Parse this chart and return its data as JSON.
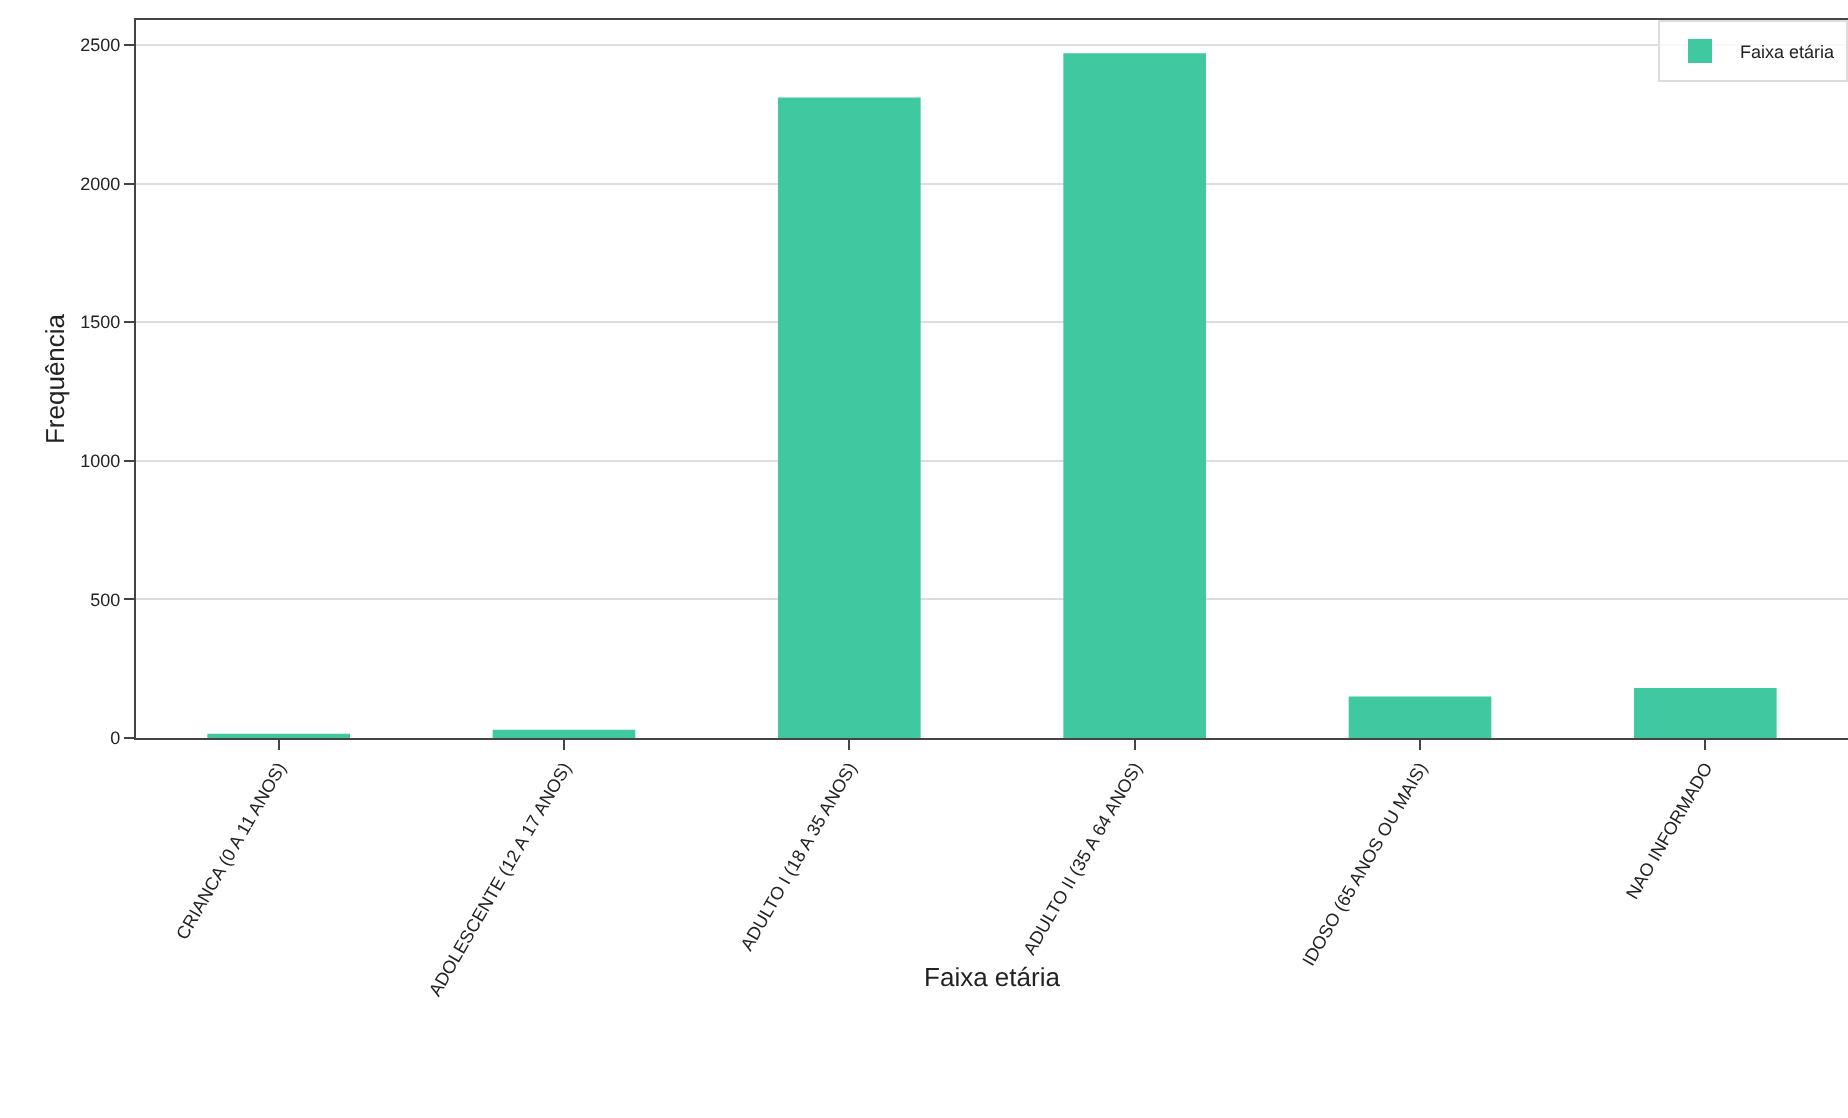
{
  "chart_data": {
    "type": "bar",
    "xlabel": "Faixa etária",
    "ylabel": "Frequência",
    "categories": [
      "CRIANCA (0 A 11 ANOS)",
      "ADOLESCENTE (12 A 17 ANOS)",
      "ADULTO I (18 A 35 ANOS)",
      "ADULTO II (35 A 64 ANOS)",
      "IDOSO (65 ANOS OU MAIS)",
      "NAO INFORMADO"
    ],
    "series": [
      {
        "name": "Faixa etária",
        "color": "#40c9a0",
        "values": [
          15,
          30,
          2310,
          2470,
          150,
          180
        ]
      }
    ],
    "ylim": [
      0,
      2590
    ],
    "yticks": [
      0,
      500,
      1000,
      1500,
      2000,
      2500
    ],
    "grid": "y",
    "legend": "top right"
  }
}
